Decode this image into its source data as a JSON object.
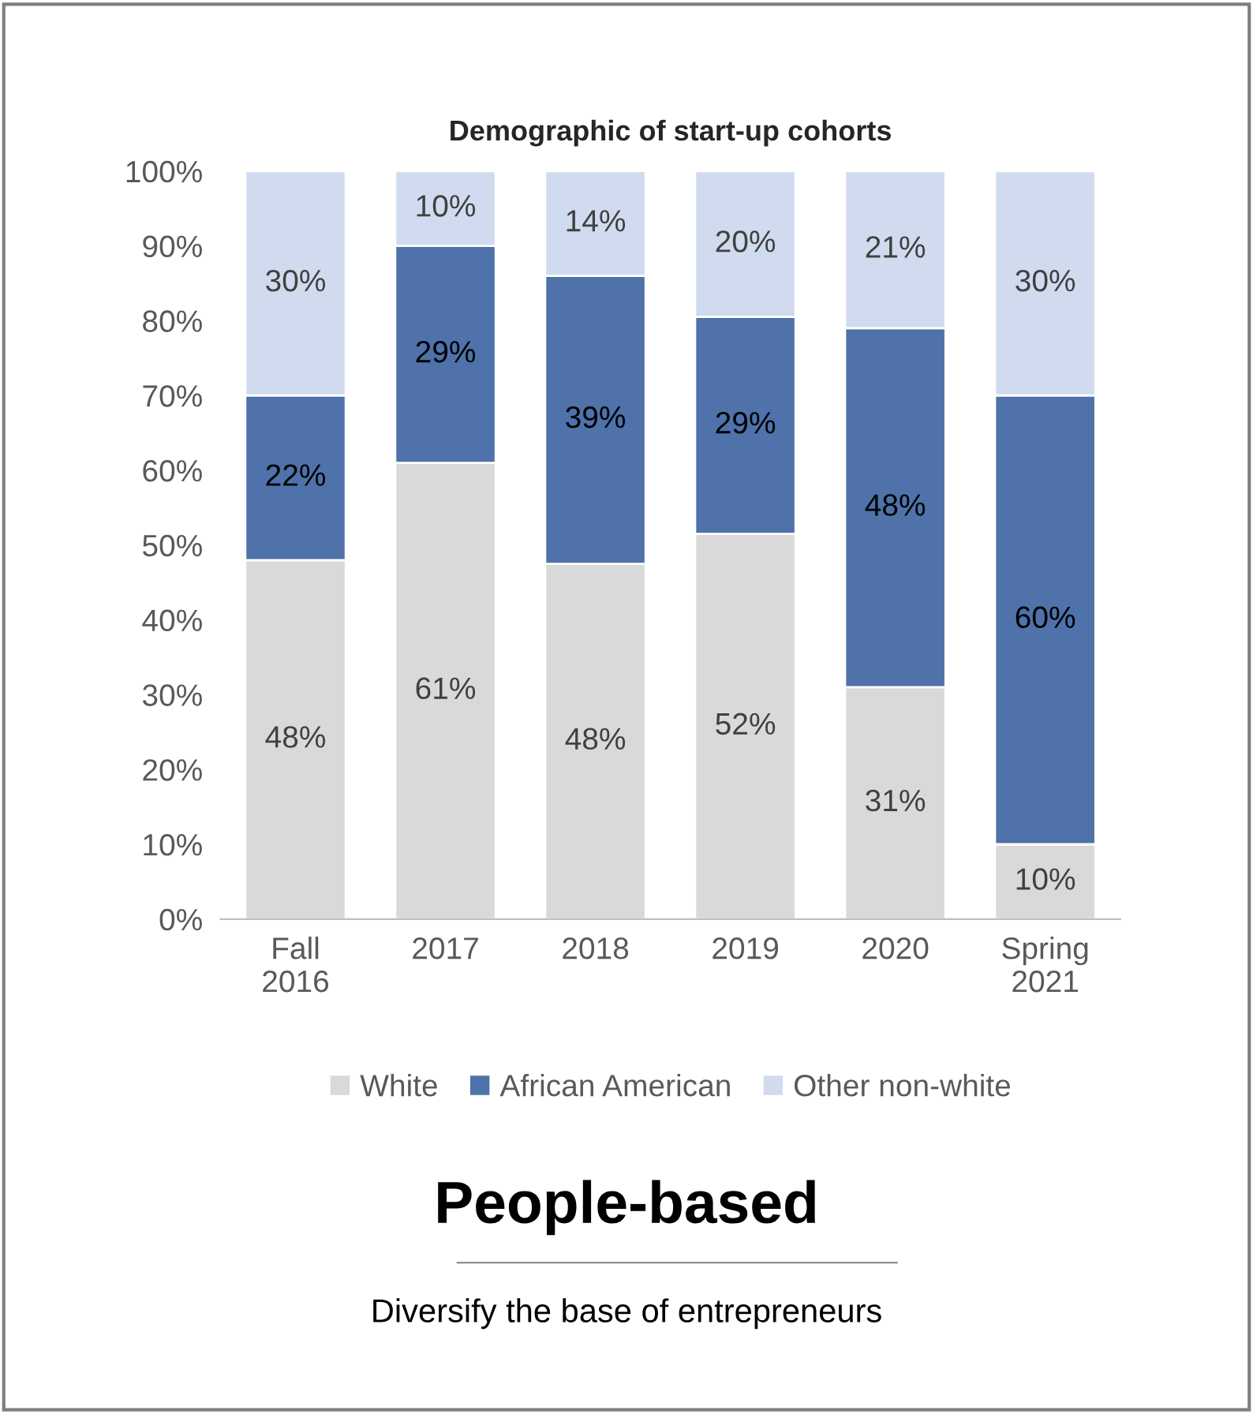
{
  "chart_data": {
    "type": "bar",
    "title": "Demographic of start-up cohorts",
    "categories": [
      "Fall\n2016",
      "2017",
      "2018",
      "2019",
      "2020",
      "Spring\n2021"
    ],
    "stacked": true,
    "series": [
      {
        "name": "White",
        "color": "#d9d9d9",
        "values": [
          48,
          61,
          47.5,
          51.5,
          31,
          10
        ],
        "value_labels": [
          "48%",
          "61%",
          "48%",
          "52%",
          "31%",
          "10%"
        ]
      },
      {
        "name": "African American",
        "color": "#4e72a9",
        "values": [
          22,
          29,
          38.5,
          29,
          48,
          60
        ],
        "value_labels": [
          "22%",
          "29%",
          "39%",
          "29%",
          "48%",
          "60%"
        ]
      },
      {
        "name": "Other non-white",
        "color": "#d0dbef",
        "values": [
          30,
          10,
          14,
          19.5,
          21,
          30
        ],
        "value_labels": [
          "30%",
          "10%",
          "14%",
          "20%",
          "21%",
          "30%"
        ]
      }
    ],
    "ylim": [
      0,
      100
    ],
    "yticks": [
      {
        "value": 0,
        "label": "0%"
      },
      {
        "value": 10,
        "label": "10%"
      },
      {
        "value": 20,
        "label": "20%"
      },
      {
        "value": 30,
        "label": "30%"
      },
      {
        "value": 40,
        "label": "40%"
      },
      {
        "value": 50,
        "label": "50%"
      },
      {
        "value": 60,
        "label": "60%"
      },
      {
        "value": 70,
        "label": "70%"
      },
      {
        "value": 80,
        "label": "80%"
      },
      {
        "value": 90,
        "label": "90%"
      },
      {
        "value": 100,
        "label": "100%"
      }
    ],
    "grid": false,
    "legend": "bottom",
    "annotations": [
      "People-based",
      "Diversify the base of entrepreneurs"
    ]
  }
}
